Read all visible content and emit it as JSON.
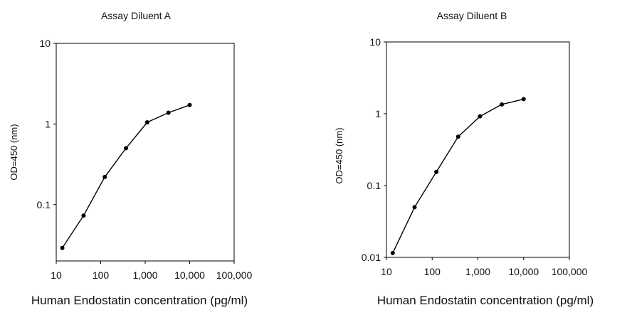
{
  "charts": [
    {
      "title": "Assay Diluent A",
      "xlabel": "Human Endostatin concentration (pg/ml)",
      "ylabel": "OD=450 (nm)",
      "x_tick_labels": [
        "10",
        "100",
        "1,000",
        "10,000",
        "100,000"
      ],
      "y_tick_labels": [
        "0.1",
        "1",
        "10"
      ]
    },
    {
      "title": "Assay Diluent B",
      "xlabel": "Human Endostatin concentration (pg/ml)",
      "ylabel": "OD=450 (nm)",
      "x_tick_labels": [
        "10",
        "100",
        "1,000",
        "10,000",
        "100,000"
      ],
      "y_tick_labels": [
        "0.01",
        "0.1",
        "1",
        "10"
      ]
    }
  ],
  "chart_data": [
    {
      "type": "line",
      "title": "Assay Diluent A",
      "xlabel": "Human Endostatin concentration (pg/ml)",
      "ylabel": "OD=450 (nm)",
      "x_scale": "log",
      "y_scale": "log",
      "xlim": [
        10,
        100000
      ],
      "ylim": [
        0.02,
        10
      ],
      "x_ticks": [
        10,
        100,
        1000,
        10000,
        100000
      ],
      "y_ticks": [
        0.1,
        1,
        10
      ],
      "grid": false,
      "legend": "none",
      "color": "#000000",
      "series": [
        {
          "x": [
            13.7,
            41.2,
            123.5,
            370.4,
            1111,
            3333,
            10000
          ],
          "y": [
            0.029,
            0.073,
            0.22,
            0.5,
            1.05,
            1.38,
            1.72
          ]
        }
      ]
    },
    {
      "type": "line",
      "title": "Assay Diluent B",
      "xlabel": "Human Endostatin concentration (pg/ml)",
      "ylabel": "OD=450 (nm)",
      "x_scale": "log",
      "y_scale": "log",
      "xlim": [
        10,
        100000
      ],
      "ylim": [
        0.01,
        10
      ],
      "x_ticks": [
        10,
        100,
        1000,
        10000,
        100000
      ],
      "y_ticks": [
        0.01,
        0.1,
        1,
        10
      ],
      "grid": false,
      "legend": "none",
      "color": "#000000",
      "series": [
        {
          "x": [
            13.7,
            41.2,
            123.5,
            370.4,
            1111,
            3333,
            10000
          ],
          "y": [
            0.0115,
            0.05,
            0.155,
            0.48,
            0.92,
            1.35,
            1.6
          ]
        }
      ]
    }
  ]
}
